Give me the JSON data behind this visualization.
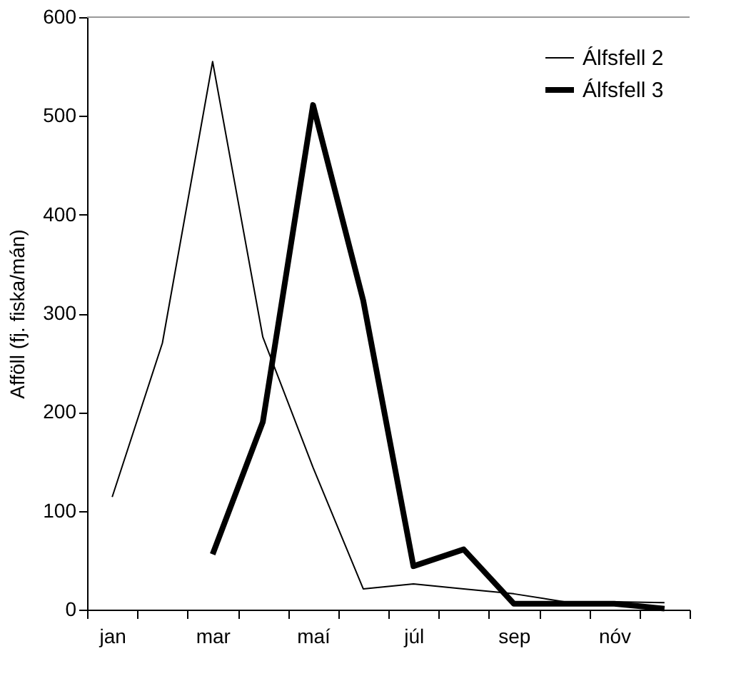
{
  "chart_data": {
    "type": "line",
    "ylabel": "Afföll (fj. fiska/mán)",
    "categories": [
      "jan",
      null,
      "mar",
      null,
      "maí",
      null,
      "júl",
      null,
      "sep",
      null,
      "nóv",
      null
    ],
    "series": [
      {
        "name": "Álfsfell 2",
        "color": "#000000",
        "values": [
          114,
          270,
          555,
          276,
          144,
          21,
          26,
          21,
          16,
          8,
          8,
          7
        ]
      },
      {
        "name": "Álfsfell 3",
        "color": "#000000",
        "values": [
          null,
          null,
          56,
          190,
          511,
          313,
          44,
          61,
          6,
          6,
          6,
          1
        ]
      }
    ],
    "ylim": [
      0,
      600
    ],
    "yticks": [
      0,
      100,
      200,
      300,
      400,
      500,
      600
    ],
    "grid": false,
    "legend": "top right",
    "marker": "none",
    "line_style": "solid"
  }
}
